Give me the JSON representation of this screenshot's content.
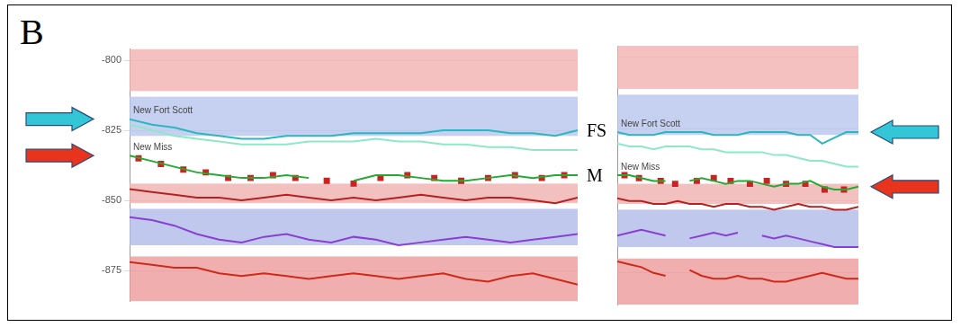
{
  "panel_label": "B",
  "chart_data": [
    {
      "type": "line",
      "x": [
        0,
        5,
        10,
        15,
        20,
        25,
        30,
        35,
        40,
        45,
        50,
        55,
        60,
        65,
        70,
        75,
        80,
        85,
        90,
        95,
        100
      ],
      "xlim": [
        0,
        100
      ],
      "ylim": [
        -886,
        -796
      ],
      "yticks": [
        -800,
        -825,
        -850,
        -875
      ],
      "grid": true,
      "tick_labels": "y",
      "amplitude_bands": [
        {
          "from": -796,
          "to": -811,
          "color": "#f2b0b0"
        },
        {
          "from": -813,
          "to": -827,
          "color": "#b8c4ec"
        },
        {
          "from": -844,
          "to": -851,
          "color": "#f0b0b0"
        },
        {
          "from": -853,
          "to": -866,
          "color": "#b0bce8"
        },
        {
          "from": -870,
          "to": -886,
          "color": "#ee9a9a"
        }
      ],
      "series": [
        {
          "name": "New Fort Scott",
          "color": "#2ab7c0",
          "line_style": "solid",
          "values": [
            -821,
            -823,
            -824,
            -826,
            -827,
            -828,
            -828,
            -827,
            -827,
            -827,
            -826,
            -826,
            -826,
            -826,
            -825,
            -825,
            -825,
            -826,
            -826,
            -827,
            -825
          ]
        },
        {
          "color": "#8ee8c8",
          "line_style": "solid",
          "values": [
            -823,
            -825,
            -827,
            -828,
            -829,
            -830,
            -830,
            -830,
            -829,
            -829,
            -829,
            -828,
            -829,
            -829,
            -830,
            -830,
            -831,
            -831,
            -832,
            -832,
            -832
          ]
        },
        {
          "name": "New Miss",
          "color": "#22aa33",
          "line_style": "solid",
          "values": [
            -834,
            -836,
            -838,
            -840,
            -841,
            -842,
            -842,
            -841,
            -842,
            null,
            -843,
            -841,
            -841,
            -842,
            -843,
            -843,
            -842,
            -841,
            -842,
            -841,
            -841
          ]
        },
        {
          "type": "scatter",
          "color": "#cc2222",
          "marker": "square",
          "x": [
            2,
            7,
            12,
            17,
            22,
            27,
            32,
            37,
            44,
            50,
            56,
            62,
            68,
            74,
            80,
            86,
            92,
            97
          ],
          "values": [
            -835,
            -837,
            -839,
            -840,
            -842,
            -842,
            -841,
            -842,
            -843,
            -844,
            -842,
            -841,
            -842,
            -843,
            -842,
            -841,
            -842,
            -841
          ]
        },
        {
          "color": "#b22222",
          "line_style": "solid",
          "values": [
            -846,
            -847,
            -848,
            -849,
            -849,
            -850,
            -849,
            -848,
            -849,
            -850,
            -849,
            -850,
            -849,
            -848,
            -849,
            -850,
            -849,
            -849,
            -850,
            -851,
            -849
          ]
        },
        {
          "color": "#8a3fd1",
          "line_style": "solid",
          "values": [
            -856,
            -857,
            -859,
            -862,
            -864,
            -865,
            -863,
            -862,
            -864,
            -865,
            -863,
            -864,
            -866,
            -865,
            -864,
            -863,
            -864,
            -865,
            -864,
            -863,
            -862
          ]
        },
        {
          "color": "#cc2a1a",
          "line_style": "solid",
          "values": [
            -872,
            -873,
            -874,
            -874,
            -876,
            -877,
            -876,
            -877,
            -878,
            -877,
            -876,
            -877,
            -878,
            -877,
            -876,
            -878,
            -879,
            -877,
            -876,
            -878,
            -880
          ]
        }
      ]
    },
    {
      "type": "line",
      "x": [
        0,
        5,
        10,
        15,
        20,
        25,
        30,
        35,
        40,
        45,
        50,
        55,
        60,
        65,
        70,
        75,
        80,
        85,
        90,
        95,
        100
      ],
      "xlim": [
        0,
        100
      ],
      "ylim": [
        -886,
        -796
      ],
      "yticks": [
        -800,
        -825,
        -850,
        -875
      ],
      "grid": true,
      "tick_labels": false,
      "amplitude_bands": [
        {
          "from": -796,
          "to": -811,
          "color": "#f2b0b0"
        },
        {
          "from": -813,
          "to": -827,
          "color": "#b8c4ec"
        },
        {
          "from": -844,
          "to": -851,
          "color": "#f0b0b0"
        },
        {
          "from": -853,
          "to": -866,
          "color": "#b0bce8"
        },
        {
          "from": -870,
          "to": -886,
          "color": "#ee9a9a"
        }
      ],
      "series": [
        {
          "name": "New Fort Scott",
          "color": "#2ab7c0",
          "line_style": "solid",
          "values": [
            -826,
            -827,
            -827,
            -827,
            -826,
            -826,
            -826,
            -826,
            -827,
            -827,
            -827,
            -826,
            -826,
            -826,
            -826,
            -827,
            -827,
            -830,
            -828,
            -826,
            -826
          ]
        },
        {
          "color": "#8ee8c8",
          "line_style": "solid",
          "values": [
            -830,
            -831,
            -831,
            -832,
            -831,
            -831,
            -831,
            -832,
            -832,
            -833,
            -833,
            -833,
            -833,
            -834,
            -834,
            -835,
            -836,
            -836,
            -837,
            -838,
            -838
          ]
        },
        {
          "name": "New Miss",
          "color": "#22aa33",
          "line_style": "solid",
          "values": [
            -841,
            -841,
            -842,
            -843,
            -843,
            null,
            -843,
            -842,
            -843,
            -844,
            -843,
            -843,
            -844,
            -845,
            -844,
            -844,
            -843,
            -845,
            -846,
            -846,
            -845
          ]
        },
        {
          "type": "scatter",
          "color": "#cc2222",
          "marker": "square",
          "x": [
            3,
            9,
            18,
            24,
            33,
            40,
            47,
            55,
            62,
            70,
            78,
            86,
            94
          ],
          "values": [
            -841,
            -842,
            -843,
            -844,
            -843,
            -842,
            -843,
            -844,
            -843,
            -844,
            -844,
            -846,
            -846
          ]
        },
        {
          "color": "#b22222",
          "line_style": "solid",
          "values": [
            -849,
            -850,
            -850,
            -851,
            -851,
            -850,
            -851,
            -851,
            -852,
            -851,
            -851,
            -852,
            -852,
            -853,
            -852,
            -851,
            -852,
            -852,
            -853,
            -853,
            -852
          ]
        },
        {
          "color": "#8a3fd1",
          "line_style": "solid",
          "values": [
            -862,
            -861,
            -860,
            -861,
            -862,
            null,
            -863,
            -862,
            -861,
            -862,
            -861,
            null,
            -862,
            -863,
            -862,
            -863,
            -864,
            -865,
            -866,
            -866,
            -866
          ]
        },
        {
          "color": "#cc2a1a",
          "line_style": "solid",
          "values": [
            -871,
            -872,
            -873,
            -875,
            -876,
            null,
            -874,
            -876,
            -877,
            -877,
            -876,
            -877,
            -877,
            -878,
            -878,
            -877,
            -876,
            -875,
            -876,
            -877,
            -877
          ]
        }
      ]
    }
  ],
  "annotations": [
    {
      "text": "FS",
      "series": "New Fort Scott"
    },
    {
      "text": "M",
      "series": "New Miss"
    }
  ]
}
